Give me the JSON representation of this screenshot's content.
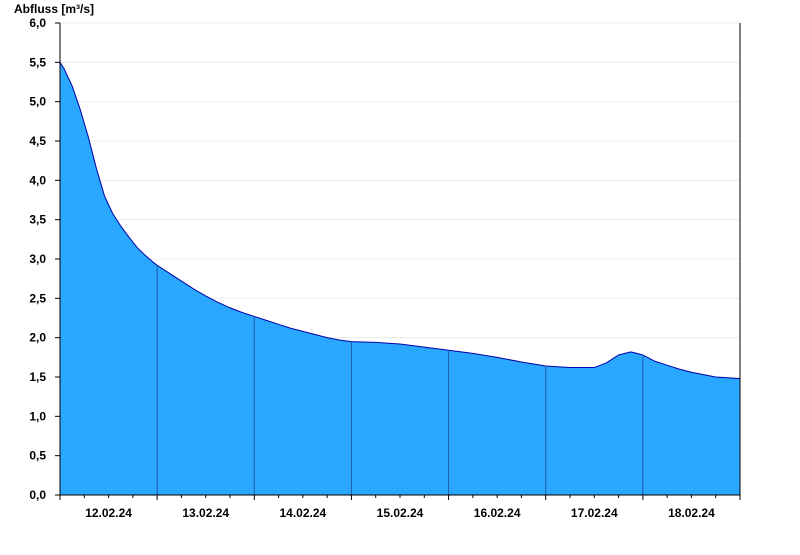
{
  "chart_data": {
    "type": "area",
    "ylabel": "Abfluss [m³/s]",
    "xlabel": "",
    "title": "",
    "ylim": [
      0,
      6.0
    ],
    "xlim": [
      "2024-02-11T12:00",
      "2024-02-18T12:00"
    ],
    "y_ticks": [
      "0,0",
      "0,5",
      "1,0",
      "1,5",
      "2,0",
      "2,5",
      "3,0",
      "3,5",
      "4,0",
      "4,5",
      "5,0",
      "5,5",
      "6,0"
    ],
    "x_tick_labels": [
      "12.02.24",
      "13.02.24",
      "14.02.24",
      "15.02.24",
      "16.02.24",
      "17.02.24",
      "18.02.24"
    ],
    "day_boundaries": [
      "2024-02-12T12:00",
      "2024-02-13T12:00",
      "2024-02-14T12:00",
      "2024-02-15T12:00",
      "2024-02-16T12:00",
      "2024-02-17T12:00"
    ],
    "grid": true,
    "fill_color": "#2aa7ff",
    "line_color": "#0000aa",
    "series": [
      {
        "x": [
          "2024-02-11T12:00",
          "2024-02-11T13:00",
          "2024-02-11T15:00",
          "2024-02-11T17:00",
          "2024-02-11T19:00",
          "2024-02-11T21:00",
          "2024-02-11T23:00",
          "2024-02-12T01:00",
          "2024-02-12T03:00",
          "2024-02-12T05:00",
          "2024-02-12T07:00",
          "2024-02-12T09:00",
          "2024-02-12T11:00",
          "2024-02-12T12:00",
          "2024-02-12T15:00",
          "2024-02-12T18:00",
          "2024-02-12T21:00",
          "2024-02-13T00:00",
          "2024-02-13T03:00",
          "2024-02-13T06:00",
          "2024-02-13T09:00",
          "2024-02-13T12:00",
          "2024-02-13T15:00",
          "2024-02-13T18:00",
          "2024-02-13T21:00",
          "2024-02-14T00:00",
          "2024-02-14T03:00",
          "2024-02-14T06:00",
          "2024-02-14T09:00",
          "2024-02-14T12:00",
          "2024-02-14T18:00",
          "2024-02-15T00:00",
          "2024-02-15T06:00",
          "2024-02-15T12:00",
          "2024-02-15T18:00",
          "2024-02-16T00:00",
          "2024-02-16T06:00",
          "2024-02-16T12:00",
          "2024-02-16T18:00",
          "2024-02-17T00:00",
          "2024-02-17T03:00",
          "2024-02-17T06:00",
          "2024-02-17T09:00",
          "2024-02-17T12:00",
          "2024-02-17T15:00",
          "2024-02-17T18:00",
          "2024-02-17T21:00",
          "2024-02-18T00:00",
          "2024-02-18T06:00",
          "2024-02-18T12:00"
        ],
        "values": [
          5.5,
          5.42,
          5.2,
          4.9,
          4.55,
          4.15,
          3.8,
          3.58,
          3.42,
          3.28,
          3.15,
          3.05,
          2.96,
          2.92,
          2.82,
          2.72,
          2.62,
          2.53,
          2.45,
          2.38,
          2.32,
          2.27,
          2.22,
          2.17,
          2.12,
          2.08,
          2.04,
          2.0,
          1.97,
          1.95,
          1.94,
          1.92,
          1.88,
          1.84,
          1.8,
          1.75,
          1.69,
          1.64,
          1.62,
          1.62,
          1.68,
          1.78,
          1.82,
          1.78,
          1.7,
          1.65,
          1.6,
          1.56,
          1.5,
          1.48
        ]
      }
    ]
  }
}
